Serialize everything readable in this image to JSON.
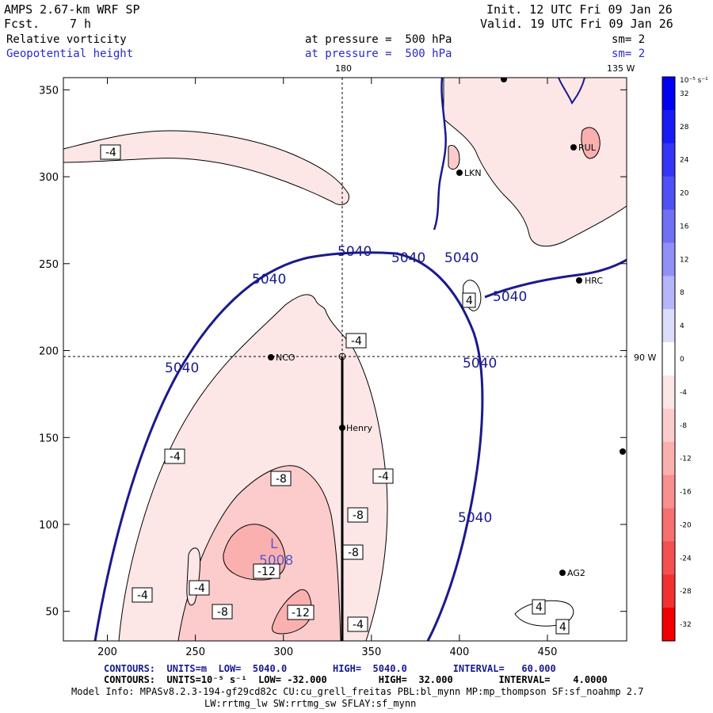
{
  "header": {
    "model": "AMPS 2.67-km WRF SP",
    "fcst_label": "Fcst.",
    "fcst_value": "7 h",
    "init": "Init. 12 UTC Fri 09 Jan 26",
    "valid": "Valid. 19 UTC Fri 09 Jan 26",
    "field1": "Relative vorticity",
    "field2": "Geopotential height",
    "level1": "at pressure =  500 hPa",
    "level2": "at pressure =  500 hPa",
    "sm1": "sm= 2",
    "sm2": "sm= 2"
  },
  "meridian_labels": {
    "top_180": "180",
    "top_135w": "135 W",
    "right_90w": "90 W"
  },
  "colorbar": {
    "unit_label": "10⁻⁵ s⁻¹",
    "ticks": [
      32,
      28,
      24,
      20,
      16,
      12,
      8,
      4,
      0,
      -4,
      -8,
      -12,
      -16,
      -20,
      -24,
      -28,
      -32
    ],
    "colors_top_to_bottom": [
      "#0000f0",
      "#1a1af5",
      "#3535f5",
      "#5050f5",
      "#7070f5",
      "#9090f7",
      "#b5b5fa",
      "#dcdcfc",
      "#ffffff",
      "#fde6e6",
      "#fccccc",
      "#fbb0b0",
      "#f89090",
      "#f67070",
      "#f45050",
      "#f23030",
      "#f00000"
    ]
  },
  "stations": [
    "NCO",
    "Henry",
    "HRC",
    "AG2",
    "LKN",
    "RUL"
  ],
  "footer": {
    "contours1": "CONTOURS:  UNITS=m  LOW=  5040.0        HIGH=  5040.0        INTERVAL=   60.000",
    "contours2": "CONTOURS:  UNITS=10⁻⁵ s⁻¹  LOW= -32.000         HIGH=  32.000        INTERVAL=    4.0000",
    "model_info": "Model Info: MPASv8.2.3-194-gf29cd82c CU:cu_grell_freitas PBL:bl_mynn MP:mp_thompson SF:sf_noahmp 2.7",
    "model_info2": "LW:rrtmg_lw SW:rrtmg_sw SFLAY:sf_mynn"
  },
  "chart_data": {
    "type": "contour",
    "xlim": [
      175,
      495
    ],
    "ylim": [
      33,
      357
    ],
    "x_ticks": [
      200,
      250,
      300,
      350,
      400,
      450
    ],
    "y_ticks": [
      50,
      100,
      150,
      200,
      250,
      300,
      350
    ],
    "height_contour_labels": [
      "5040",
      "5040",
      "5040",
      "5040",
      "5040",
      "5040",
      "5040",
      "5040"
    ],
    "vorticity_contour_labels": [
      "-4",
      "-4",
      "-4",
      "-4",
      "-4",
      "-4",
      "-4",
      "-8",
      "-8",
      "-8",
      "-8",
      "-12",
      "-12",
      "4",
      "4",
      "4"
    ],
    "low_center": {
      "letter": "L",
      "value": "5008",
      "x": 295,
      "y": 82
    },
    "stations_xy": [
      {
        "name": "NCO",
        "x": 293,
        "y": 195
      },
      {
        "name": "Henry",
        "x": 334,
        "y": 155
      },
      {
        "name": "HRC",
        "x": 467,
        "y": 239
      },
      {
        "name": "AG2",
        "x": 459,
        "y": 72
      },
      {
        "name": "LKN",
        "x": 401,
        "y": 300
      },
      {
        "name": "RUL",
        "x": 464,
        "y": 314
      }
    ],
    "grid_lines": {
      "x": 332,
      "y": 196
    },
    "section_line": {
      "x": 332,
      "y_from": 33,
      "y_to": 196
    },
    "colors": {
      "positive": "#0000ff",
      "negative": "#ff0000",
      "height_contour": "#1a1a8c"
    }
  }
}
